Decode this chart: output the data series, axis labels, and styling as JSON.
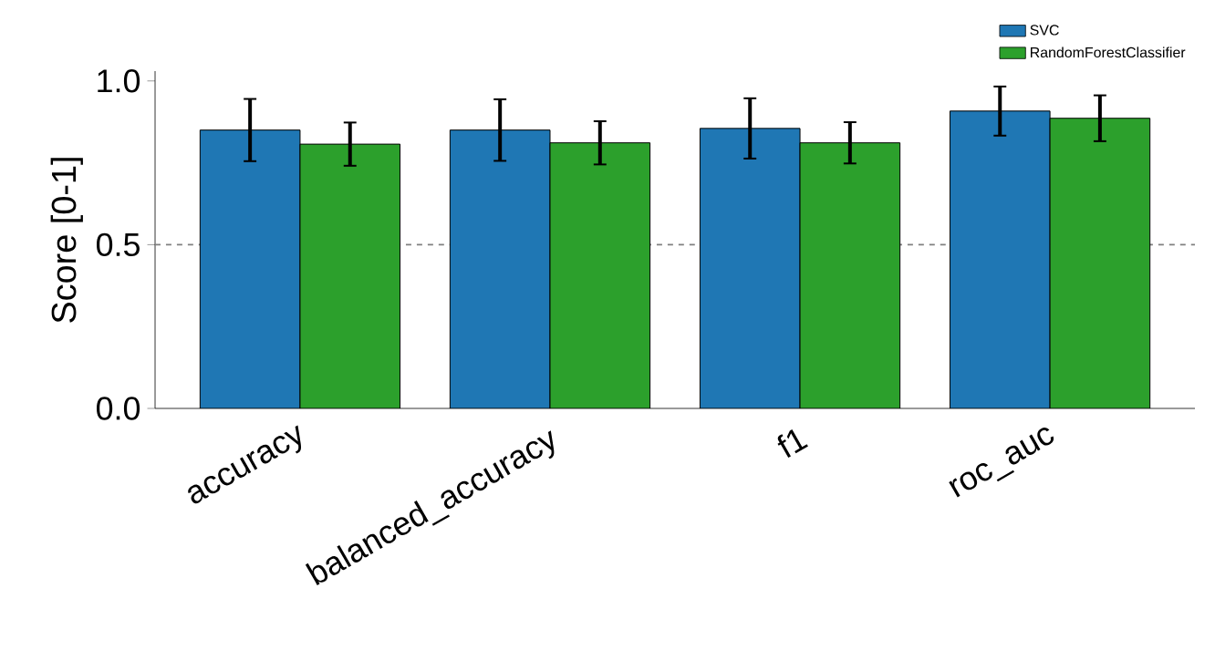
{
  "chart_data": {
    "type": "bar",
    "ylabel": "Score [0-1]",
    "categories": [
      "accuracy",
      "balanced_accuracy",
      "f1",
      "roc_auc"
    ],
    "series": [
      {
        "name": "SVC",
        "color": "#1f77b4",
        "values": [
          0.85,
          0.85,
          0.855,
          0.908
        ],
        "errors": [
          0.095,
          0.094,
          0.092,
          0.075
        ]
      },
      {
        "name": "RandomForestClassifier",
        "color": "#2ca02c",
        "values": [
          0.807,
          0.811,
          0.811,
          0.886
        ],
        "errors": [
          0.066,
          0.066,
          0.063,
          0.07
        ]
      }
    ],
    "ylim": [
      0,
      1.03
    ],
    "yticks": [
      {
        "value": 0,
        "label": "0.0"
      },
      0.5,
      {
        "value": 1,
        "label": "1.0"
      }
    ],
    "ref_lines": [
      {
        "axis": "y",
        "value": 0.5,
        "color": "#808080",
        "line_style": "dashed"
      }
    ],
    "legend": "top right",
    "grid": false
  }
}
